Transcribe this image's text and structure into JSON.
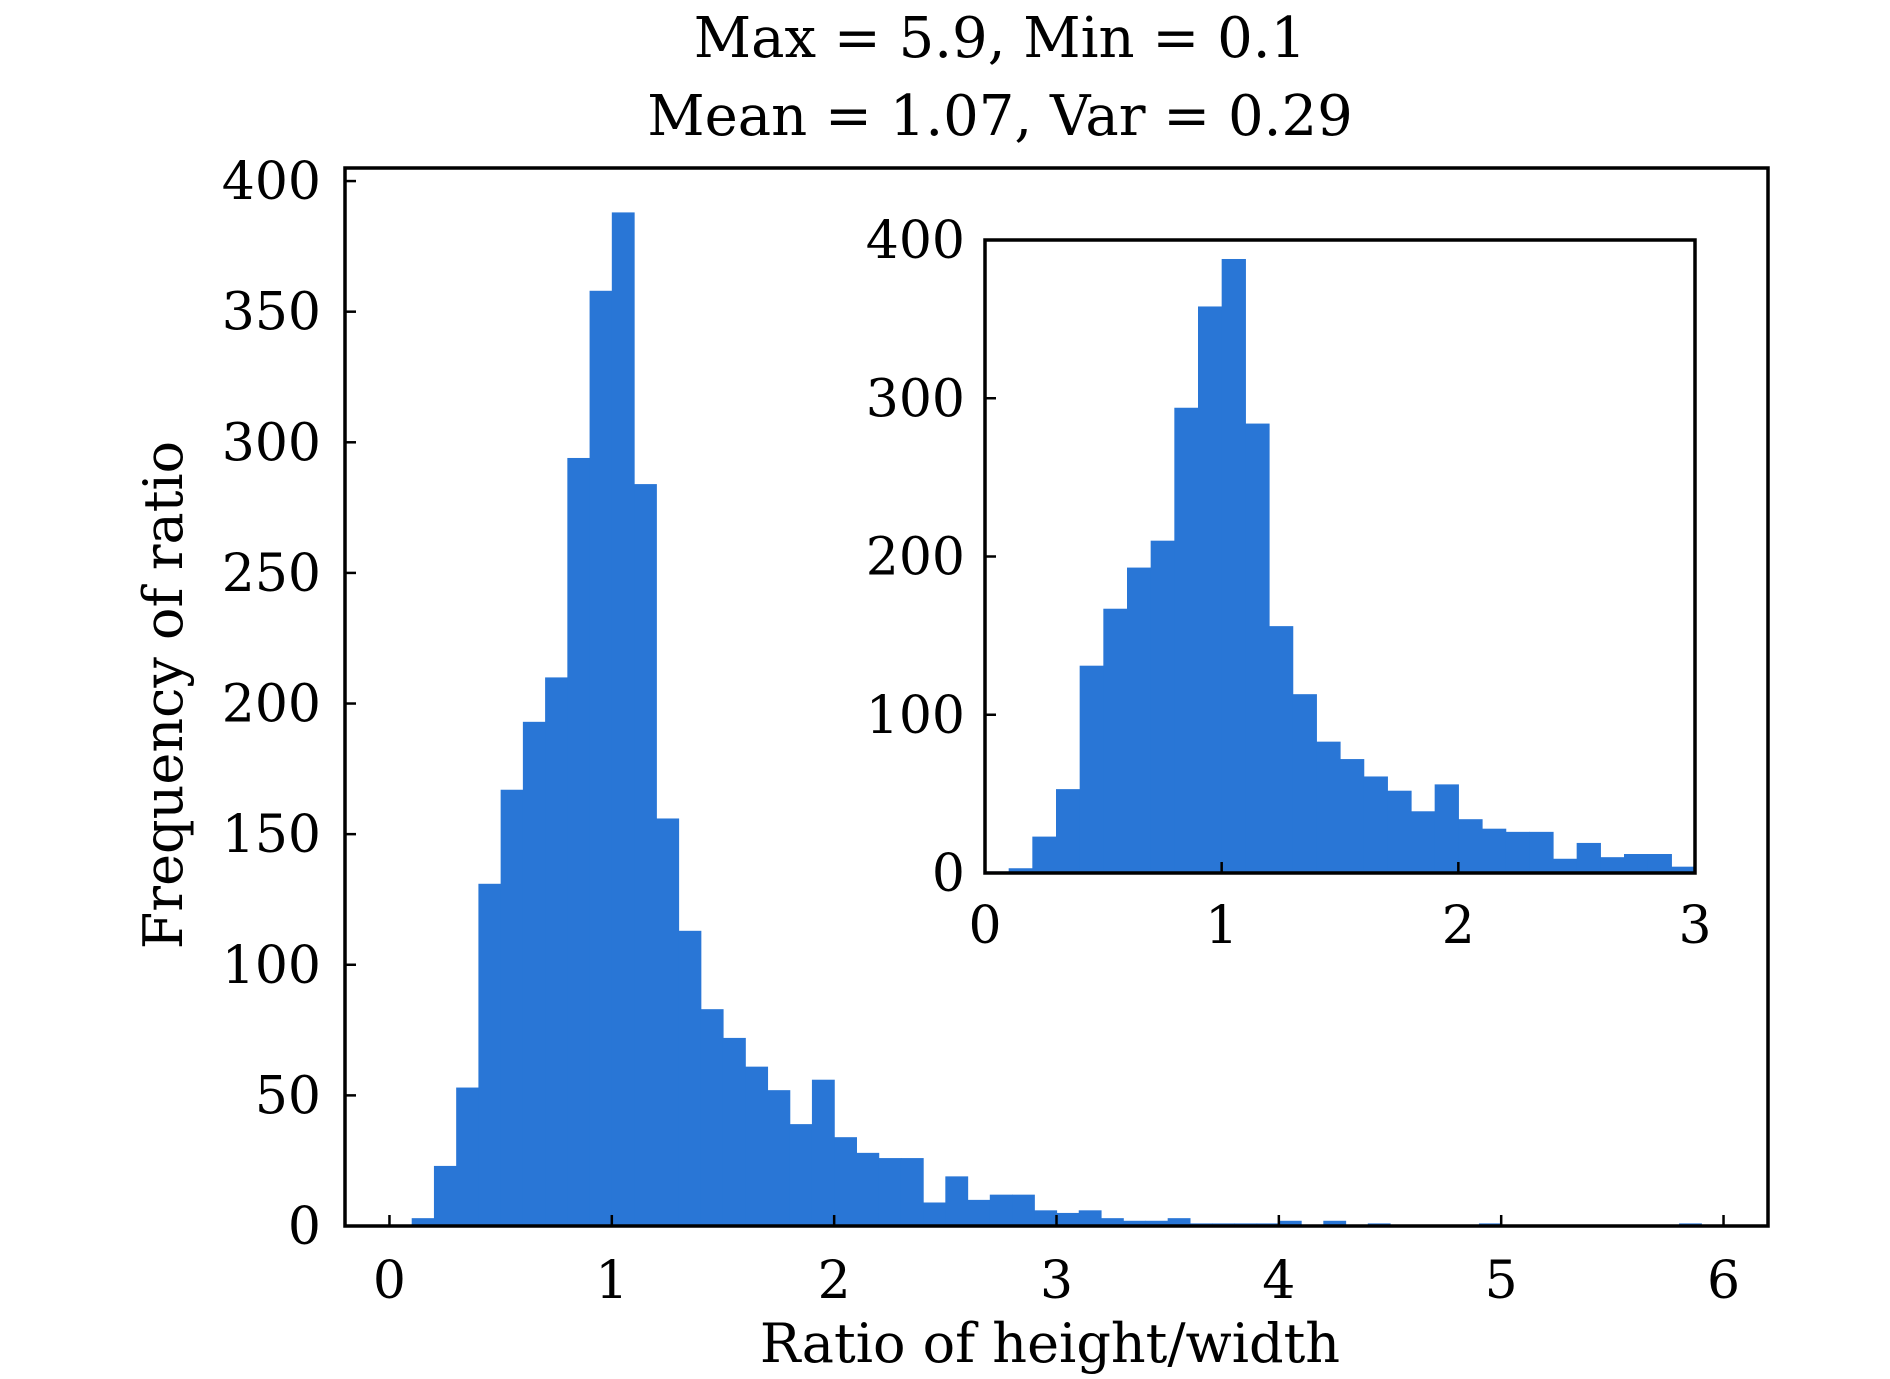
{
  "chart_data": [
    {
      "type": "bar",
      "title": "Max = 5.9, Min = 0.1",
      "subtitle": "Mean = 1.07, Var = 0.29",
      "xlabel": "Ratio of height/width",
      "ylabel": "Frequency of ratio",
      "xlim": [
        -0.2,
        6.2
      ],
      "ylim": [
        0,
        405
      ],
      "xticks": [
        0,
        1,
        2,
        3,
        4,
        5,
        6
      ],
      "yticks": [
        0,
        50,
        100,
        150,
        200,
        250,
        300,
        350,
        400
      ],
      "xtick_labels": [
        "0",
        "1",
        "2",
        "3",
        "4",
        "5",
        "6"
      ],
      "ytick_labels": [
        "0",
        "50",
        "100",
        "150",
        "200",
        "250",
        "300",
        "350",
        "400"
      ],
      "bin_width": 0.1,
      "bin_starts": [
        0.1,
        0.2,
        0.3,
        0.4,
        0.5,
        0.6,
        0.7,
        0.8,
        0.9,
        1.0,
        1.1,
        1.2,
        1.3,
        1.4,
        1.5,
        1.6,
        1.7,
        1.8,
        1.9,
        2.0,
        2.1,
        2.2,
        2.3,
        2.4,
        2.5,
        2.6,
        2.7,
        2.8,
        2.9,
        3.0,
        3.1,
        3.2,
        3.3,
        3.4,
        3.5,
        3.6,
        3.7,
        3.8,
        3.9,
        4.0,
        4.1,
        4.2,
        4.3,
        4.4,
        4.5,
        4.6,
        4.7,
        4.8,
        4.9,
        5.0,
        5.1,
        5.2,
        5.3,
        5.4,
        5.5,
        5.6,
        5.7,
        5.8
      ],
      "values": [
        3,
        23,
        53,
        131,
        167,
        193,
        210,
        294,
        358,
        388,
        284,
        156,
        113,
        83,
        72,
        61,
        52,
        39,
        56,
        34,
        28,
        26,
        26,
        9,
        19,
        10,
        12,
        12,
        6,
        5,
        6,
        3,
        2,
        2,
        3,
        1,
        1,
        1,
        1,
        2,
        0,
        2,
        0,
        1,
        0,
        0,
        0,
        0,
        1,
        0,
        0,
        0,
        0,
        0,
        0,
        0,
        0,
        1
      ],
      "color": "#2976d6",
      "grid": false,
      "tick_direction": "in"
    },
    {
      "type": "bar",
      "title": "",
      "xlabel": "",
      "ylabel": "",
      "xlim": [
        0,
        3
      ],
      "ylim": [
        0,
        400
      ],
      "xticks": [
        0,
        1,
        2,
        3
      ],
      "yticks": [
        0,
        100,
        200,
        300,
        400
      ],
      "xtick_labels": [
        "0",
        "1",
        "2",
        "3"
      ],
      "ytick_labels": [
        "0",
        "100",
        "200",
        "300",
        "400"
      ],
      "bin_width": 0.1,
      "bin_starts": [
        0.0,
        0.1,
        0.2,
        0.3,
        0.4,
        0.5,
        0.6,
        0.7,
        0.8,
        0.9,
        1.0,
        1.1,
        1.2,
        1.3,
        1.4,
        1.5,
        1.6,
        1.7,
        1.8,
        1.9,
        2.0,
        2.1,
        2.2,
        2.3,
        2.4,
        2.5,
        2.6,
        2.7,
        2.8,
        2.9
      ],
      "values": [
        1,
        3,
        23,
        53,
        131,
        167,
        193,
        210,
        294,
        358,
        388,
        284,
        156,
        113,
        83,
        72,
        61,
        52,
        39,
        56,
        34,
        28,
        26,
        26,
        9,
        19,
        10,
        12,
        12,
        4
      ],
      "color": "#2976d6",
      "grid": false,
      "tick_direction": "in"
    }
  ]
}
